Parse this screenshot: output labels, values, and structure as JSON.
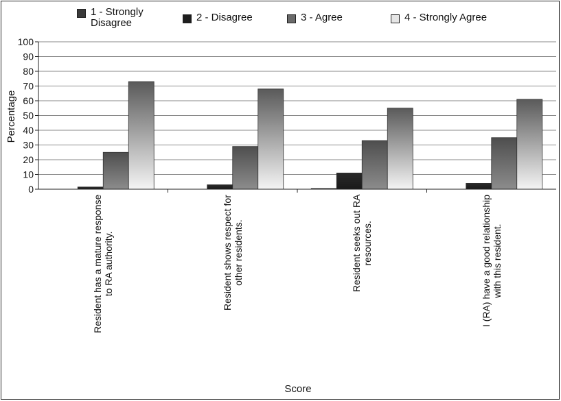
{
  "chart_data": {
    "type": "bar",
    "xlabel": "Score",
    "ylabel": "Percentage",
    "ylim": [
      0,
      100
    ],
    "yticks": [
      0,
      10,
      20,
      30,
      40,
      50,
      60,
      70,
      80,
      90,
      100
    ],
    "grid": true,
    "legend_position": "top",
    "categories": [
      "Resident has a mature response to RA authority.",
      "Resident shows respect for other residents.",
      "Resident seeks out RA resources.",
      "I (RA) have a good relationship with this resident."
    ],
    "category_lines": [
      [
        "Resident has a mature response",
        "to RA authority."
      ],
      [
        "Resident shows respect for",
        "other residents."
      ],
      [
        "Resident seeks out RA",
        "resources."
      ],
      [
        "I (RA) have a good relationship",
        "with this resident."
      ]
    ],
    "series": [
      {
        "name": "1 - Strongly Disagree",
        "legend_lines": [
          "1 - Strongly",
          "Disagree"
        ],
        "values": [
          0,
          0,
          0.5,
          0
        ],
        "color": "#3a3a3a"
      },
      {
        "name": "2 - Disagree",
        "legend_lines": [
          "2 - Disagree"
        ],
        "values": [
          1.5,
          3,
          11,
          4
        ],
        "color": "#1e1e1e"
      },
      {
        "name": "3 - Agree",
        "legend_lines": [
          "3 - Agree"
        ],
        "values": [
          25,
          29,
          33,
          35
        ],
        "color": "#6a6a6a"
      },
      {
        "name": "4 - Strongly Agree",
        "legend_lines": [
          "4 - Strongly Agree"
        ],
        "values": [
          73,
          68,
          55,
          61
        ],
        "color": "#e6e6e6"
      }
    ]
  }
}
